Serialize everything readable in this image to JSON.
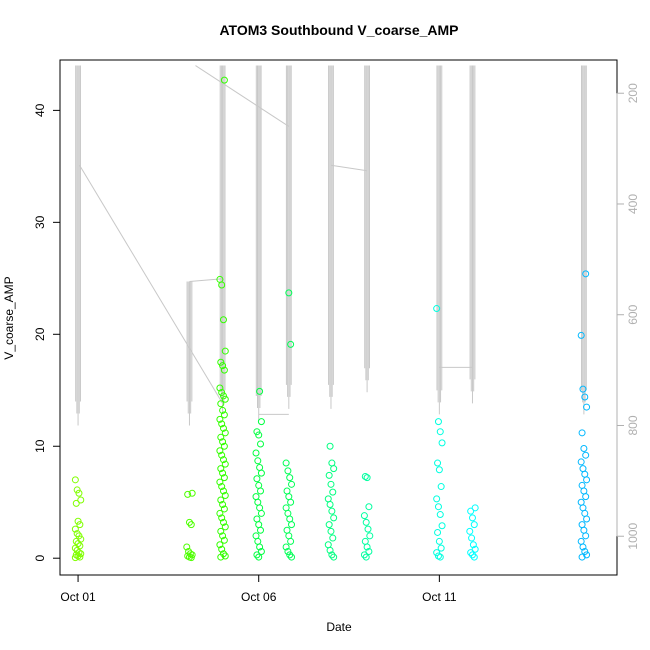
{
  "chart_data": {
    "type": "scatter",
    "title": "ATOM3 Southbound V_coarse_AMP",
    "xlabel": "Date",
    "ylabel": "V_coarse_AMP",
    "x_axis": {
      "type": "date",
      "range": [
        "2023-09-30T12:00",
        "2023-10-15T22:00"
      ],
      "ticks": [
        {
          "x": "2023-10-01",
          "label": "Oct 01"
        },
        {
          "x": "2023-10-06",
          "label": "Oct 06"
        },
        {
          "x": "2023-10-11",
          "label": "Oct 11"
        }
      ]
    },
    "y_axis": {
      "range": [
        -1.5,
        44.5
      ],
      "ticks": [
        0,
        10,
        20,
        30,
        40
      ]
    },
    "y2_axis": {
      "reversed": true,
      "range": [
        140,
        1070
      ],
      "ticks": [
        200,
        400,
        600,
        800,
        1000
      ],
      "color": "#b0b0b0"
    },
    "grid": false,
    "legend": "none",
    "line_color": "#c8c8c8",
    "point_style": "open-circle",
    "point_colors": [
      "#80ff00",
      "#40ff00",
      "#00ff40",
      "#00ff80",
      "#00ffb0",
      "#00ffff",
      "#00c0ff"
    ],
    "clusters": [
      {
        "x": "2023-10-01T00:00",
        "color": "#80ff00",
        "points": [
          7.0,
          6.1,
          5.8,
          5.2,
          4.9,
          3.3,
          3.0,
          2.6,
          2.2,
          2.0,
          1.7,
          1.5,
          1.3,
          1.1,
          0.9,
          0.7,
          0.5,
          0.4,
          0.3,
          0.2,
          0.1,
          0.05
        ]
      },
      {
        "x": "2023-10-04T02:00",
        "color": "#4dff00",
        "points": [
          5.8,
          5.7,
          3.2,
          3.0,
          1.0,
          0.6,
          0.4,
          0.3,
          0.2,
          0.1,
          0.05
        ]
      },
      {
        "x": "2023-10-05T00:00",
        "color": "#33ff00",
        "points": [
          42.7,
          24.9,
          24.4,
          21.3,
          18.5,
          17.5,
          17.2,
          16.8,
          15.2,
          14.8,
          14.5,
          14.2,
          13.8,
          13.2,
          12.8,
          12.4,
          12.0,
          11.6,
          11.2,
          10.8,
          10.4,
          10.0,
          9.6,
          9.2,
          8.8,
          8.4,
          8.0,
          7.6,
          7.2,
          6.8,
          6.4,
          6.0,
          5.6,
          5.2,
          4.8,
          4.4,
          4.0,
          3.6,
          3.2,
          2.8,
          2.4,
          2.0,
          1.6,
          1.2,
          0.8,
          0.4,
          0.2,
          0.1
        ]
      },
      {
        "x": "2023-10-06T00:00",
        "color": "#00ff40",
        "points": [
          14.9,
          12.2,
          11.3,
          11.0,
          10.2,
          9.4,
          8.7,
          8.1,
          7.6,
          7.1,
          6.5,
          6.0,
          5.5,
          5.0,
          4.5,
          4.0,
          3.5,
          3.0,
          2.5,
          2.0,
          1.5,
          1.0,
          0.6,
          0.3,
          0.1
        ]
      },
      {
        "x": "2023-10-06T20:00",
        "color": "#00ff55",
        "points": [
          23.7,
          19.1,
          8.5,
          7.8,
          7.2,
          6.6,
          6.0,
          5.5,
          5.0,
          4.5,
          4.0,
          3.5,
          3.0,
          2.5,
          2.0,
          1.5,
          1.0,
          0.6,
          0.3,
          0.1
        ]
      },
      {
        "x": "2023-10-08T00:00",
        "color": "#00ff80",
        "points": [
          10.0,
          8.5,
          8.0,
          7.4,
          6.6,
          5.9,
          5.3,
          4.8,
          4.2,
          3.6,
          3.0,
          2.4,
          1.8,
          1.2,
          0.7,
          0.3,
          0.1
        ]
      },
      {
        "x": "2023-10-09T00:00",
        "color": "#00ffa0",
        "points": [
          7.3,
          7.2,
          4.6,
          3.8,
          3.2,
          2.6,
          2.0,
          1.5,
          1.0,
          0.6,
          0.3,
          0.1
        ]
      },
      {
        "x": "2023-10-11T00:00",
        "color": "#00ffe0",
        "points": [
          22.3,
          12.2,
          11.3,
          10.3,
          8.5,
          7.9,
          6.4,
          5.3,
          4.6,
          3.9,
          2.9,
          2.3,
          1.5,
          0.9,
          0.5,
          0.2,
          0.1
        ]
      },
      {
        "x": "2023-10-11T22:00",
        "color": "#00ffff",
        "points": [
          4.5,
          4.2,
          3.6,
          3.0,
          2.4,
          1.8,
          1.2,
          0.8,
          0.5,
          0.3,
          0.1
        ]
      },
      {
        "x": "2023-10-15T00:00",
        "color": "#00b8ff",
        "points": [
          25.4,
          19.9,
          15.1,
          14.4,
          13.5,
          11.2,
          9.8,
          9.2,
          8.6,
          8.0,
          7.5,
          7.0,
          6.5,
          6.0,
          5.5,
          5.0,
          4.5,
          4.0,
          3.5,
          3.0,
          2.5,
          2.0,
          1.5,
          1.0,
          0.6,
          0.3,
          0.1
        ]
      }
    ],
    "line_series": {
      "axis": "y2",
      "axis_label": "",
      "segments": [
        {
          "x": "2023-10-01T00:00",
          "y_top": 150,
          "y_bottom": 800
        },
        {
          "x": "2023-10-04T02:00",
          "y_top": 540,
          "y_bottom": 800
        },
        {
          "x": "2023-10-05T00:00",
          "y_top": 150,
          "y_bottom": 780
        },
        {
          "x": "2023-10-06T00:00",
          "y_top": 150,
          "y_bottom": 790
        },
        {
          "x": "2023-10-06T20:00",
          "y_top": 150,
          "y_bottom": 770
        },
        {
          "x": "2023-10-08T00:00",
          "y_top": 150,
          "y_bottom": 770
        },
        {
          "x": "2023-10-09T00:00",
          "y_top": 150,
          "y_bottom": 740
        },
        {
          "x": "2023-10-11T00:00",
          "y_top": 150,
          "y_bottom": 780
        },
        {
          "x": "2023-10-11T22:00",
          "y_top": 150,
          "y_bottom": 760
        },
        {
          "x": "2023-10-15T00:00",
          "y_top": 150,
          "y_bottom": 780
        }
      ],
      "connectors": [
        {
          "from": {
            "x": "2023-10-01T01:00",
            "y": 330
          },
          "to": {
            "x": "2023-10-05T00:00",
            "y": 760
          }
        },
        {
          "from": {
            "x": "2023-10-04T02:00",
            "y": 540
          },
          "to": {
            "x": "2023-10-05T00:00",
            "y": 535
          }
        },
        {
          "from": {
            "x": "2023-10-04T06:00",
            "y": 150
          },
          "to": {
            "x": "2023-10-06T20:00",
            "y": 260
          }
        },
        {
          "from": {
            "x": "2023-10-06T00:00",
            "y": 780
          },
          "to": {
            "x": "2023-10-06T20:00",
            "y": 780
          }
        },
        {
          "from": {
            "x": "2023-10-08T00:00",
            "y": 330
          },
          "to": {
            "x": "2023-10-09T00:00",
            "y": 340
          }
        },
        {
          "from": {
            "x": "2023-10-11T00:00",
            "y": 695
          },
          "to": {
            "x": "2023-10-11T22:00",
            "y": 695
          }
        }
      ]
    }
  }
}
